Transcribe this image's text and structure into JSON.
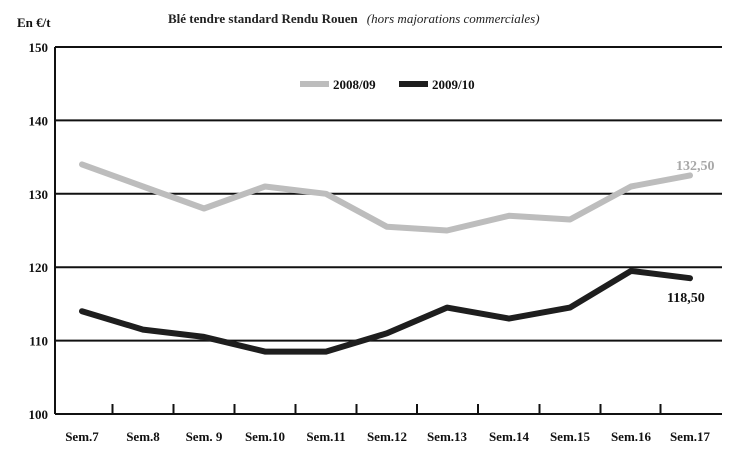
{
  "chart_data": {
    "type": "line",
    "title": "Blé tendre standard Rendu Rouen",
    "subtitle": "(hors majorations commerciales)",
    "ylabel": "En €/t",
    "xlabel": "",
    "categories": [
      "Sem.7",
      "Sem.8",
      "Sem. 9",
      "Sem.10",
      "Sem.11",
      "Sem.12",
      "Sem.13",
      "Sem.14",
      "Sem.15",
      "Sem.16",
      "Sem.17"
    ],
    "ylim": [
      100,
      150
    ],
    "yticks": [
      100,
      110,
      120,
      130,
      140,
      150
    ],
    "grid": true,
    "legend_position": "top-center",
    "series": [
      {
        "name": "2008/09",
        "color": "#bdbdbd",
        "values": [
          134,
          131,
          128,
          131,
          130,
          125.5,
          125,
          127,
          126.5,
          131,
          132.5
        ],
        "end_label": "132,50"
      },
      {
        "name": "2009/10",
        "color": "#1e1e1e",
        "values": [
          114,
          111.5,
          110.5,
          108.5,
          108.5,
          111,
          114.5,
          113,
          114.5,
          119.5,
          118.5
        ],
        "end_label": "118,50"
      }
    ]
  }
}
